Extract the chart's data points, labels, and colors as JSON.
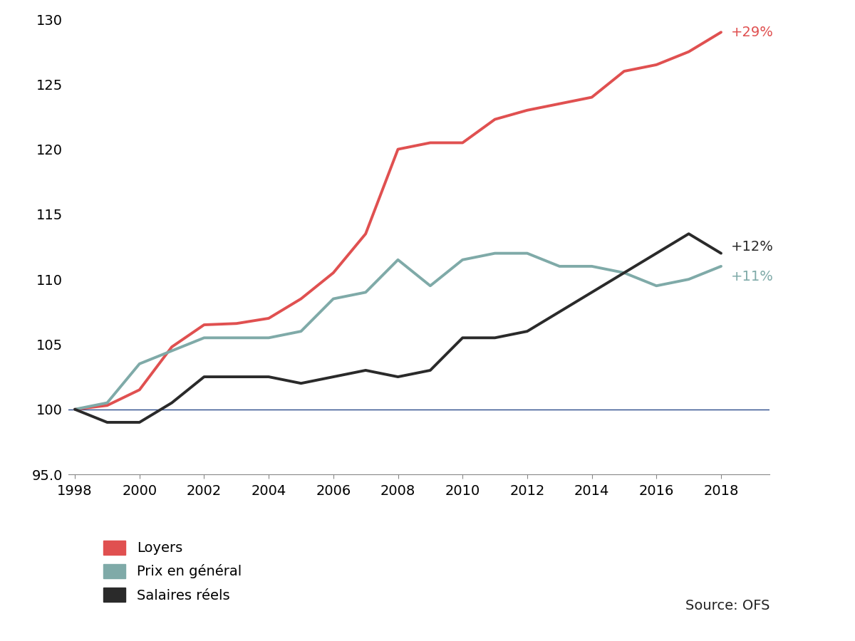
{
  "years": [
    1998,
    1999,
    2000,
    2001,
    2002,
    2003,
    2004,
    2005,
    2006,
    2007,
    2008,
    2009,
    2010,
    2011,
    2012,
    2013,
    2014,
    2015,
    2016,
    2017,
    2018
  ],
  "loyers": [
    100.0,
    100.3,
    101.5,
    104.8,
    106.5,
    106.6,
    107.0,
    108.5,
    110.5,
    113.5,
    120.0,
    120.5,
    120.5,
    122.3,
    123.0,
    123.5,
    124.0,
    126.0,
    126.5,
    127.5,
    129.0
  ],
  "prix_general": [
    100.0,
    100.5,
    103.5,
    104.5,
    105.5,
    105.5,
    105.5,
    106.0,
    108.5,
    109.0,
    111.5,
    109.5,
    111.5,
    112.0,
    112.0,
    111.0,
    111.0,
    110.5,
    109.5,
    110.0,
    111.0
  ],
  "salaires_reels": [
    100.0,
    99.0,
    99.0,
    100.5,
    102.5,
    102.5,
    102.5,
    102.0,
    102.5,
    103.0,
    102.5,
    103.0,
    105.5,
    105.5,
    106.0,
    107.5,
    109.0,
    110.5,
    112.0,
    113.5,
    112.0
  ],
  "baseline": 100,
  "loyers_color": "#e05050",
  "prix_color": "#7faaa8",
  "salaires_color": "#2a2a2a",
  "baseline_color": "#2a4a8a",
  "loyers_label": "Loyers",
  "prix_label": "Prix en général",
  "salaires_label": "Salaires réels",
  "loyers_annot": "+29%",
  "prix_annot": "+11%",
  "salaires_annot": "+12%",
  "source_text": "Source: OFS",
  "ylim": [
    95.0,
    130.0
  ],
  "xlim_min": 1997.8,
  "xlim_max": 2019.5,
  "yticks": [
    95.0,
    100,
    105,
    110,
    115,
    120,
    125,
    130
  ],
  "xticks": [
    1998,
    2000,
    2002,
    2004,
    2006,
    2008,
    2010,
    2012,
    2014,
    2016,
    2018
  ],
  "linewidth": 2.8,
  "title_fontsize": 14,
  "tick_fontsize": 14,
  "legend_fontsize": 14,
  "annot_fontsize": 14
}
